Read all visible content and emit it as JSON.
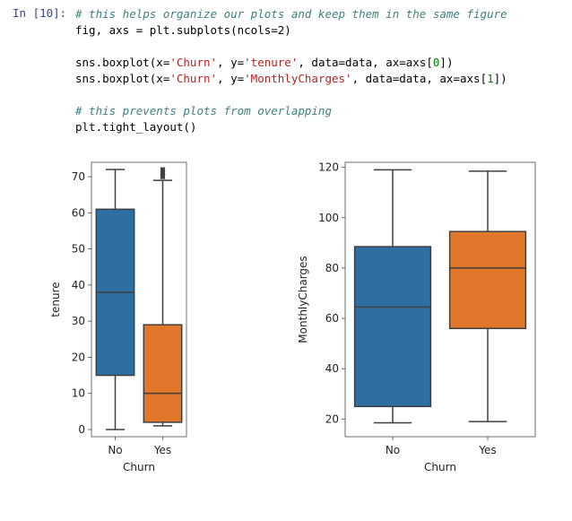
{
  "cell": {
    "prompt": "In [10]:",
    "code_lines": [
      "# this helps organize our plots and keep them in the same figure",
      "fig, axs = plt.subplots(ncols=2)",
      "",
      "sns.boxplot(x='Churn', y='tenure', data=data, ax=axs[0])",
      "sns.boxplot(x='Churn', y='MonthlyCharges', data=data, ax=axs[1])",
      "",
      "# this prevents plots from overlapping",
      "plt.tight_layout()"
    ]
  },
  "colors": {
    "no": "#2d6fa3",
    "yes": "#e0772a",
    "line": "#3f3f3f",
    "prompt": "#303f9f"
  },
  "chart_data": [
    {
      "type": "box",
      "xlabel": "Churn",
      "ylabel": "tenure",
      "categories": [
        "No",
        "Yes"
      ],
      "ylim": [
        -2,
        74
      ],
      "yticks": [
        0,
        10,
        20,
        30,
        40,
        50,
        60,
        70
      ],
      "boxes": [
        {
          "category": "No",
          "whisker_low": 0,
          "q1": 15,
          "median": 38,
          "q3": 61,
          "whisker_high": 72,
          "outliers": []
        },
        {
          "category": "Yes",
          "whisker_low": 1,
          "q1": 2,
          "median": 10,
          "q3": 29,
          "whisker_high": 69,
          "outliers": [
            70,
            71,
            72
          ]
        }
      ]
    },
    {
      "type": "box",
      "xlabel": "Churn",
      "ylabel": "MonthlyCharges",
      "categories": [
        "No",
        "Yes"
      ],
      "ylim": [
        13,
        122
      ],
      "yticks": [
        20,
        40,
        60,
        80,
        100,
        120
      ],
      "boxes": [
        {
          "category": "No",
          "whisker_low": 18.5,
          "q1": 25,
          "median": 64.5,
          "q3": 88.5,
          "whisker_high": 119,
          "outliers": []
        },
        {
          "category": "Yes",
          "whisker_low": 19,
          "q1": 56,
          "median": 80,
          "q3": 94.5,
          "whisker_high": 118.5,
          "outliers": []
        }
      ]
    }
  ]
}
